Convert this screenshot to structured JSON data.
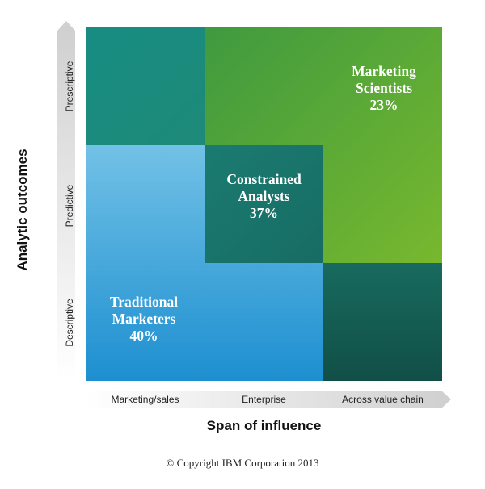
{
  "y_axis": {
    "title": "Analytic outcomes",
    "levels": [
      "Prescriptive",
      "Predictive",
      "Descriptive"
    ]
  },
  "x_axis": {
    "title": "Span of influence",
    "levels": [
      "Marketing/sales",
      "Enterprise",
      "Across value chain"
    ]
  },
  "segments": {
    "marketing_scientists": {
      "line1": "Marketing",
      "line2": "Scientists",
      "percent": "23%"
    },
    "constrained_analysts": {
      "line1": "Constrained",
      "line2": "Analysts",
      "percent": "37%"
    },
    "traditional_marketers": {
      "line1": "Traditional",
      "line2": "Marketers",
      "percent": "40%"
    }
  },
  "colors": {
    "teal": "#1a8c80",
    "dark_teal": "#155e53",
    "green": "#5aa836",
    "blue": "#3aa3dc"
  },
  "copyright": "© Copyright IBM Corporation 2013"
}
